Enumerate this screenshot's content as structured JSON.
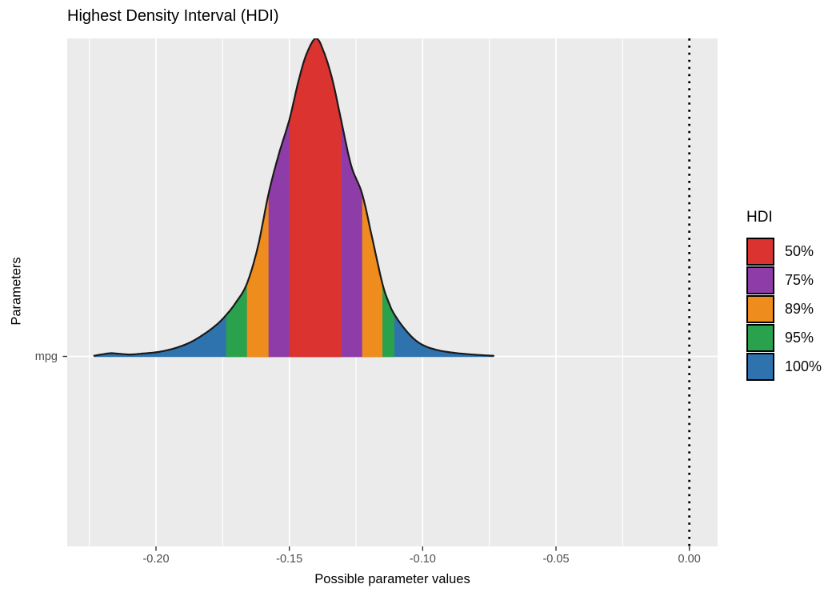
{
  "chart_data": {
    "type": "area",
    "title": "Highest Density Interval (HDI)",
    "xlabel": "Possible parameter values",
    "ylabel": "Parameters",
    "y_category": "mpg",
    "x_axis": {
      "range": [
        -0.2333,
        0.0106
      ],
      "ticks": [
        -0.2,
        -0.15,
        -0.1,
        -0.05,
        0.0
      ],
      "tick_labels": [
        "-0.20",
        "-0.15",
        "-0.10",
        "-0.05",
        "0.00"
      ],
      "minor_ticks": [
        -0.225,
        -0.175,
        -0.125,
        -0.075,
        -0.025
      ]
    },
    "reference_line": {
      "x": 0.0,
      "style": "dotted",
      "color": "#000000"
    },
    "legend": {
      "title": "HDI",
      "position": "right",
      "items": [
        {
          "label": "50%",
          "color": "#DB3330",
          "interval": [
            -0.15,
            -0.1305
          ]
        },
        {
          "label": "75%",
          "color": "#8E3DA8",
          "interval": [
            -0.1578,
            -0.1227
          ]
        },
        {
          "label": "89%",
          "color": "#EE8C1E",
          "interval": [
            -0.1659,
            -0.1151
          ]
        },
        {
          "label": "95%",
          "color": "#2AA14C",
          "interval": [
            -0.1737,
            -0.1106
          ]
        },
        {
          "label": "100%",
          "color": "#2E73AE",
          "interval": [
            -0.2232,
            -0.0734
          ]
        }
      ]
    },
    "style": {
      "panel_background": "#EBEBEB",
      "gridline_color": "#FFFFFF",
      "outline_color": "#1A1A1A",
      "tick_color": "#333333"
    },
    "density_points": [
      [
        -0.2232,
        0.002
      ],
      [
        -0.2205,
        0.006
      ],
      [
        -0.217,
        0.01
      ],
      [
        -0.2135,
        0.008
      ],
      [
        -0.2095,
        0.006
      ],
      [
        -0.205,
        0.009
      ],
      [
        -0.2,
        0.013
      ],
      [
        -0.1955,
        0.02
      ],
      [
        -0.191,
        0.031
      ],
      [
        -0.1865,
        0.047
      ],
      [
        -0.182,
        0.07
      ],
      [
        -0.1775,
        0.098
      ],
      [
        -0.1737,
        0.13
      ],
      [
        -0.17,
        0.17
      ],
      [
        -0.1659,
        0.229
      ],
      [
        -0.1618,
        0.345
      ],
      [
        -0.1578,
        0.511
      ],
      [
        -0.154,
        0.634
      ],
      [
        -0.15,
        0.744
      ],
      [
        -0.1465,
        0.868
      ],
      [
        -0.1435,
        0.952
      ],
      [
        -0.14,
        1.0
      ],
      [
        -0.137,
        0.956
      ],
      [
        -0.1338,
        0.868
      ],
      [
        -0.1305,
        0.74
      ],
      [
        -0.1268,
        0.6
      ],
      [
        -0.1227,
        0.511
      ],
      [
        -0.119,
        0.375
      ],
      [
        -0.1151,
        0.229
      ],
      [
        -0.1125,
        0.165
      ],
      [
        -0.1106,
        0.132
      ],
      [
        -0.107,
        0.089
      ],
      [
        -0.103,
        0.053
      ],
      [
        -0.099,
        0.032
      ],
      [
        -0.094,
        0.019
      ],
      [
        -0.089,
        0.012
      ],
      [
        -0.083,
        0.007
      ],
      [
        -0.078,
        0.004
      ],
      [
        -0.0734,
        0.002
      ]
    ]
  }
}
